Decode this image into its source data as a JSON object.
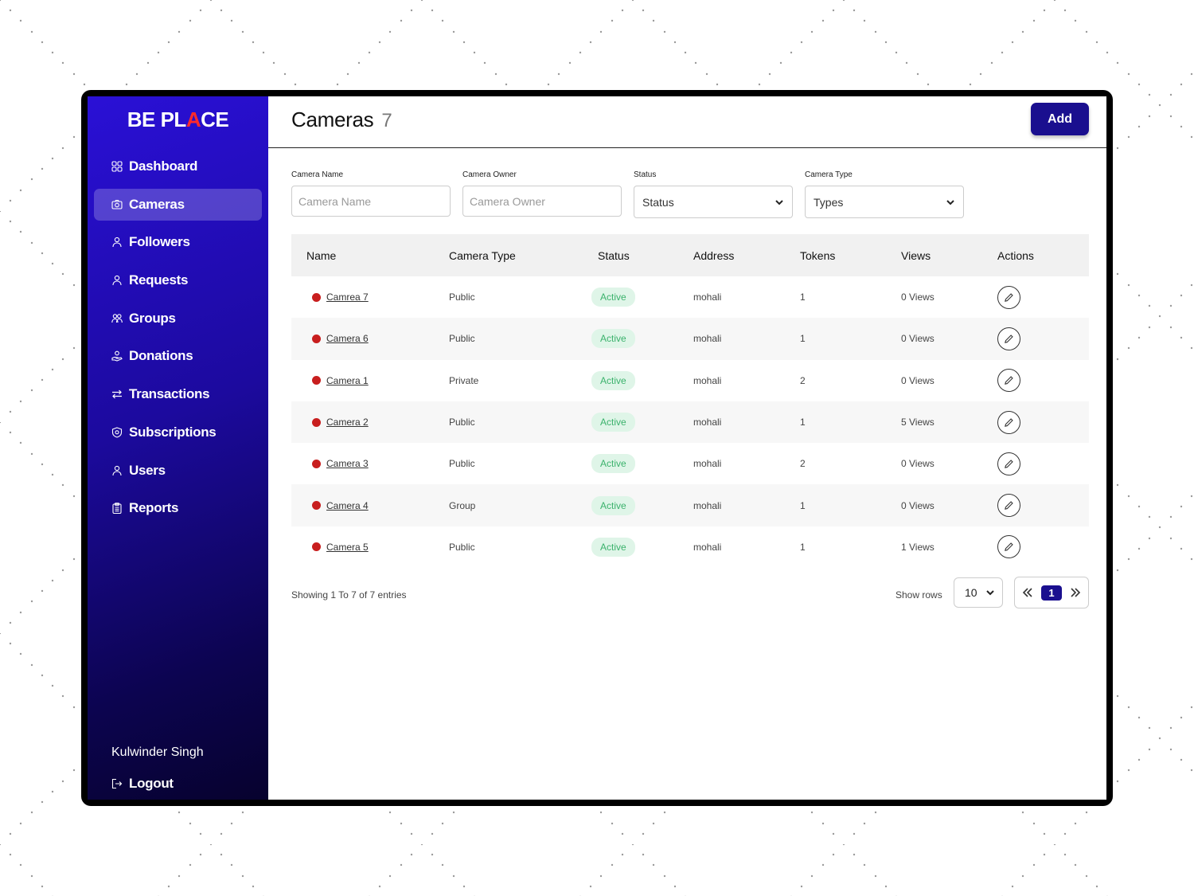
{
  "app": {
    "logo_part1": "BE PL",
    "logo_accent": "A",
    "logo_part2": "CE",
    "accent_color": "#ff2a2a",
    "brand_color": "#1a0f8f"
  },
  "sidebar": {
    "items": [
      {
        "label": "Dashboard",
        "icon": "grid-icon",
        "active": false
      },
      {
        "label": "Cameras",
        "icon": "camera-icon",
        "active": true
      },
      {
        "label": "Followers",
        "icon": "person-icon",
        "active": false
      },
      {
        "label": "Requests",
        "icon": "person-icon",
        "active": false
      },
      {
        "label": "Groups",
        "icon": "people-icon",
        "active": false
      },
      {
        "label": "Donations",
        "icon": "donation-icon",
        "active": false
      },
      {
        "label": "Transactions",
        "icon": "swap-arrows-icon",
        "active": false
      },
      {
        "label": "Subscriptions",
        "icon": "shield-icon",
        "active": false
      },
      {
        "label": "Users",
        "icon": "person-icon",
        "active": false
      },
      {
        "label": "Reports",
        "icon": "clipboard-icon",
        "active": false
      }
    ],
    "user_name": "Kulwinder Singh",
    "logout_label": "Logout"
  },
  "header": {
    "title": "Cameras",
    "count": "7",
    "add_label": "Add"
  },
  "filters": {
    "camera_name": {
      "label": "Camera Name",
      "placeholder": "Camera Name"
    },
    "camera_owner": {
      "label": "Camera Owner",
      "placeholder": "Camera Owner"
    },
    "status": {
      "label": "Status",
      "selected": "Status"
    },
    "camera_type": {
      "label": "Camera Type",
      "selected": "Types"
    }
  },
  "table": {
    "columns": [
      "Name",
      "Camera Type",
      "Status",
      "Address",
      "Tokens",
      "Views",
      "Actions"
    ],
    "rows": [
      {
        "name": "Camrea 7",
        "type": "Public",
        "status": "Active",
        "address": "mohali",
        "tokens": "1",
        "views": "0 Views"
      },
      {
        "name": "Camera 6",
        "type": "Public",
        "status": "Active",
        "address": "mohali",
        "tokens": "1",
        "views": "0 Views"
      },
      {
        "name": "Camera 1",
        "type": "Private",
        "status": "Active",
        "address": "mohali",
        "tokens": "2",
        "views": "0 Views"
      },
      {
        "name": "Camera 2",
        "type": "Public",
        "status": "Active",
        "address": "mohali",
        "tokens": "1",
        "views": "5 Views"
      },
      {
        "name": "Camera 3",
        "type": "Public",
        "status": "Active",
        "address": "mohali",
        "tokens": "2",
        "views": "0 Views"
      },
      {
        "name": "Camera 4",
        "type": "Group",
        "status": "Active",
        "address": "mohali",
        "tokens": "1",
        "views": "0 Views"
      },
      {
        "name": "Camera 5",
        "type": "Public",
        "status": "Active",
        "address": "mohali",
        "tokens": "1",
        "views": "1 Views"
      }
    ]
  },
  "footer": {
    "showing": "Showing 1 To 7 of 7 entries",
    "show_rows_label": "Show rows",
    "rows_value": "10",
    "current_page": "1"
  }
}
